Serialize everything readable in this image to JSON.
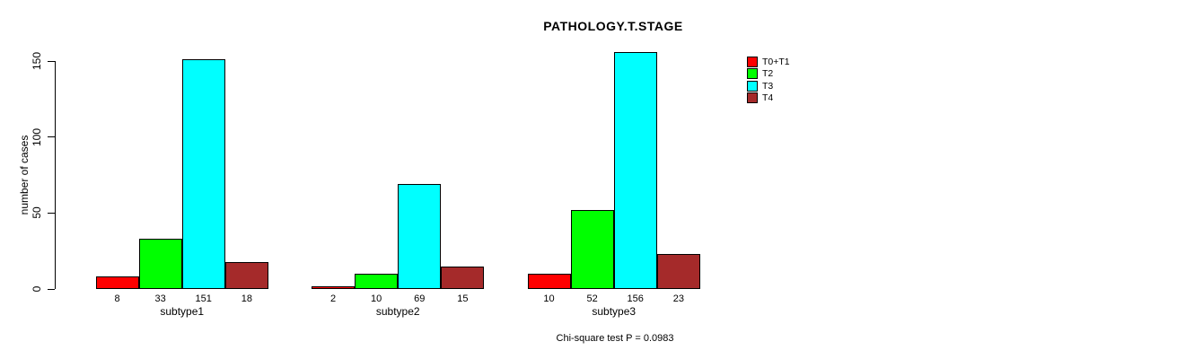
{
  "chart_data": {
    "type": "bar",
    "grouped": true,
    "title": "PATHOLOGY.T.STAGE",
    "ylabel": "number of cases",
    "xlabel": "",
    "categories": [
      "subtype1",
      "subtype2",
      "subtype3"
    ],
    "series": [
      {
        "name": "T0+T1",
        "color": "#FF0000",
        "values": [
          8,
          2,
          10
        ]
      },
      {
        "name": "T2",
        "color": "#00FF00",
        "values": [
          33,
          10,
          52
        ]
      },
      {
        "name": "T3",
        "color": "#00FFFF",
        "values": [
          151,
          69,
          156
        ]
      },
      {
        "name": "T4",
        "color": "#A52A2A",
        "values": [
          18,
          15,
          23
        ]
      }
    ],
    "yticks": [
      0,
      50,
      100,
      150
    ],
    "ylim": [
      0,
      156
    ],
    "grid": false,
    "value_labels": true,
    "bar_border_color": "#000000",
    "legend_position": "right",
    "annotation": "Chi-square test P = 0.0983"
  }
}
